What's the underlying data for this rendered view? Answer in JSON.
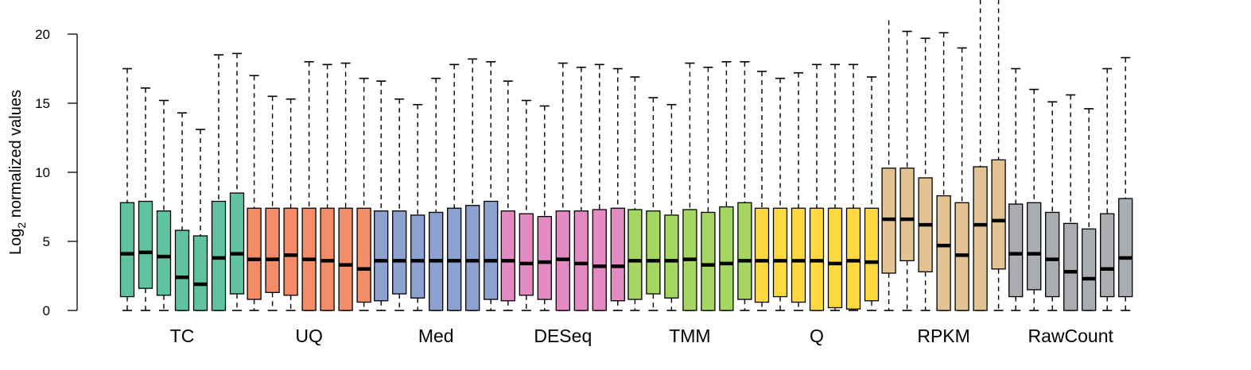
{
  "chart_data": {
    "type": "box",
    "ylabel": "Log2 normalized values",
    "ylabel_parts": {
      "base": "Log",
      "subscript": "2",
      "rest": " normalized values"
    },
    "ylim": [
      0,
      20
    ],
    "yticks": [
      0,
      5,
      10,
      15,
      20
    ],
    "grid": false,
    "legend": "none",
    "groups": [
      {
        "name": "TC",
        "color": "#5fc2a2",
        "boxes": [
          {
            "min": 0,
            "q1": 1.0,
            "median": 4.1,
            "q3": 7.8,
            "max": 17.5
          },
          {
            "min": 0,
            "q1": 1.6,
            "median": 4.2,
            "q3": 7.9,
            "max": 16.1
          },
          {
            "min": 0,
            "q1": 1.1,
            "median": 3.9,
            "q3": 7.2,
            "max": 15.2
          },
          {
            "min": 0,
            "q1": 0.0,
            "median": 2.4,
            "q3": 5.8,
            "max": 14.3
          },
          {
            "min": 0,
            "q1": 0.0,
            "median": 1.9,
            "q3": 5.4,
            "max": 13.1
          },
          {
            "min": 0,
            "q1": 0.0,
            "median": 3.8,
            "q3": 7.9,
            "max": 18.5
          },
          {
            "min": 0,
            "q1": 1.2,
            "median": 4.1,
            "q3": 8.5,
            "max": 18.6
          }
        ]
      },
      {
        "name": "UQ",
        "color": "#f38d69",
        "boxes": [
          {
            "min": 0,
            "q1": 0.8,
            "median": 3.7,
            "q3": 7.4,
            "max": 17.0
          },
          {
            "min": 0,
            "q1": 1.3,
            "median": 3.7,
            "q3": 7.4,
            "max": 15.5
          },
          {
            "min": 0,
            "q1": 1.1,
            "median": 4.0,
            "q3": 7.4,
            "max": 15.3
          },
          {
            "min": 0,
            "q1": 0.0,
            "median": 3.7,
            "q3": 7.4,
            "max": 18.0
          },
          {
            "min": 0,
            "q1": 0.0,
            "median": 3.6,
            "q3": 7.4,
            "max": 17.8
          },
          {
            "min": 0,
            "q1": 0.0,
            "median": 3.3,
            "q3": 7.4,
            "max": 17.9
          },
          {
            "min": 0,
            "q1": 0.6,
            "median": 3.0,
            "q3": 7.4,
            "max": 16.8
          }
        ]
      },
      {
        "name": "Med",
        "color": "#8ca1cf",
        "boxes": [
          {
            "min": 0,
            "q1": 0.7,
            "median": 3.6,
            "q3": 7.2,
            "max": 16.6
          },
          {
            "min": 0,
            "q1": 1.2,
            "median": 3.6,
            "q3": 7.2,
            "max": 15.3
          },
          {
            "min": 0,
            "q1": 0.9,
            "median": 3.6,
            "q3": 6.9,
            "max": 14.9
          },
          {
            "min": 0,
            "q1": 0.0,
            "median": 3.6,
            "q3": 7.1,
            "max": 16.8
          },
          {
            "min": 0,
            "q1": 0.0,
            "median": 3.6,
            "q3": 7.4,
            "max": 17.8
          },
          {
            "min": 0,
            "q1": 0.0,
            "median": 3.6,
            "q3": 7.6,
            "max": 18.2
          },
          {
            "min": 0,
            "q1": 0.8,
            "median": 3.6,
            "q3": 7.9,
            "max": 18.0
          }
        ]
      },
      {
        "name": "DESeq",
        "color": "#e28ac1",
        "boxes": [
          {
            "min": 0,
            "q1": 0.7,
            "median": 3.6,
            "q3": 7.2,
            "max": 16.6
          },
          {
            "min": 0,
            "q1": 1.1,
            "median": 3.4,
            "q3": 7.0,
            "max": 15.2
          },
          {
            "min": 0,
            "q1": 0.8,
            "median": 3.5,
            "q3": 6.8,
            "max": 14.8
          },
          {
            "min": 0,
            "q1": 0.0,
            "median": 3.7,
            "q3": 7.2,
            "max": 17.9
          },
          {
            "min": 0,
            "q1": 0.0,
            "median": 3.4,
            "q3": 7.2,
            "max": 17.6
          },
          {
            "min": 0,
            "q1": 0.0,
            "median": 3.2,
            "q3": 7.3,
            "max": 17.8
          },
          {
            "min": 0,
            "q1": 0.7,
            "median": 3.2,
            "q3": 7.4,
            "max": 17.5
          }
        ]
      },
      {
        "name": "TMM",
        "color": "#a5d662",
        "boxes": [
          {
            "min": 0,
            "q1": 0.8,
            "median": 3.6,
            "q3": 7.3,
            "max": 16.9
          },
          {
            "min": 0,
            "q1": 1.2,
            "median": 3.6,
            "q3": 7.2,
            "max": 15.4
          },
          {
            "min": 0,
            "q1": 0.9,
            "median": 3.6,
            "q3": 6.9,
            "max": 14.9
          },
          {
            "min": 0,
            "q1": 0.0,
            "median": 3.7,
            "q3": 7.3,
            "max": 17.9
          },
          {
            "min": 0,
            "q1": 0.0,
            "median": 3.3,
            "q3": 7.1,
            "max": 17.6
          },
          {
            "min": 0,
            "q1": 0.0,
            "median": 3.4,
            "q3": 7.5,
            "max": 18.0
          },
          {
            "min": 0,
            "q1": 0.8,
            "median": 3.6,
            "q3": 7.8,
            "max": 18.0
          }
        ]
      },
      {
        "name": "Q",
        "color": "#fed940",
        "boxes": [
          {
            "min": 0,
            "q1": 0.6,
            "median": 3.6,
            "q3": 7.4,
            "max": 17.3
          },
          {
            "min": 0,
            "q1": 1.0,
            "median": 3.6,
            "q3": 7.4,
            "max": 16.8
          },
          {
            "min": 0,
            "q1": 0.6,
            "median": 3.6,
            "q3": 7.4,
            "max": 17.2
          },
          {
            "min": 0,
            "q1": 0.0,
            "median": 3.6,
            "q3": 7.4,
            "max": 17.8
          },
          {
            "min": 0,
            "q1": 0.2,
            "median": 3.4,
            "q3": 7.4,
            "max": 17.8
          },
          {
            "min": 0,
            "q1": 0.1,
            "median": 3.6,
            "q3": 7.4,
            "max": 17.8
          },
          {
            "min": 0,
            "q1": 0.7,
            "median": 3.5,
            "q3": 7.4,
            "max": 16.9
          }
        ]
      },
      {
        "name": "RPKM",
        "color": "#e3c393",
        "boxes": [
          {
            "min": 0,
            "q1": 2.7,
            "median": 6.6,
            "q3": 10.3,
            "max": 21.0
          },
          {
            "min": 0,
            "q1": 3.6,
            "median": 6.6,
            "q3": 10.3,
            "max": 20.2
          },
          {
            "min": 0,
            "q1": 2.8,
            "median": 6.2,
            "q3": 9.6,
            "max": 19.7
          },
          {
            "min": 0,
            "q1": 0.0,
            "median": 4.7,
            "q3": 8.3,
            "max": 20.1
          },
          {
            "min": 0,
            "q1": 0.0,
            "median": 4.0,
            "q3": 7.8,
            "max": 19.0
          },
          {
            "min": 0,
            "q1": 0.0,
            "median": 6.2,
            "q3": 10.4,
            "max": 22.5
          },
          {
            "min": 0,
            "q1": 3.0,
            "median": 6.5,
            "q3": 10.9,
            "max": 22.5
          }
        ]
      },
      {
        "name": "RawCount",
        "color": "#a9acb0",
        "boxes": [
          {
            "min": 0,
            "q1": 1.0,
            "median": 4.1,
            "q3": 7.7,
            "max": 17.5
          },
          {
            "min": 0,
            "q1": 1.5,
            "median": 4.1,
            "q3": 7.8,
            "max": 16.0
          },
          {
            "min": 0,
            "q1": 1.0,
            "median": 3.7,
            "q3": 7.1,
            "max": 15.1
          },
          {
            "min": 0,
            "q1": 0.0,
            "median": 2.8,
            "q3": 6.3,
            "max": 15.6
          },
          {
            "min": 0,
            "q1": 0.0,
            "median": 2.3,
            "q3": 5.9,
            "max": 14.6
          },
          {
            "min": 0,
            "q1": 1.0,
            "median": 3.0,
            "q3": 7.0,
            "max": 17.5
          },
          {
            "min": 0,
            "q1": 1.0,
            "median": 3.8,
            "q3": 8.1,
            "max": 18.3
          }
        ]
      }
    ]
  }
}
